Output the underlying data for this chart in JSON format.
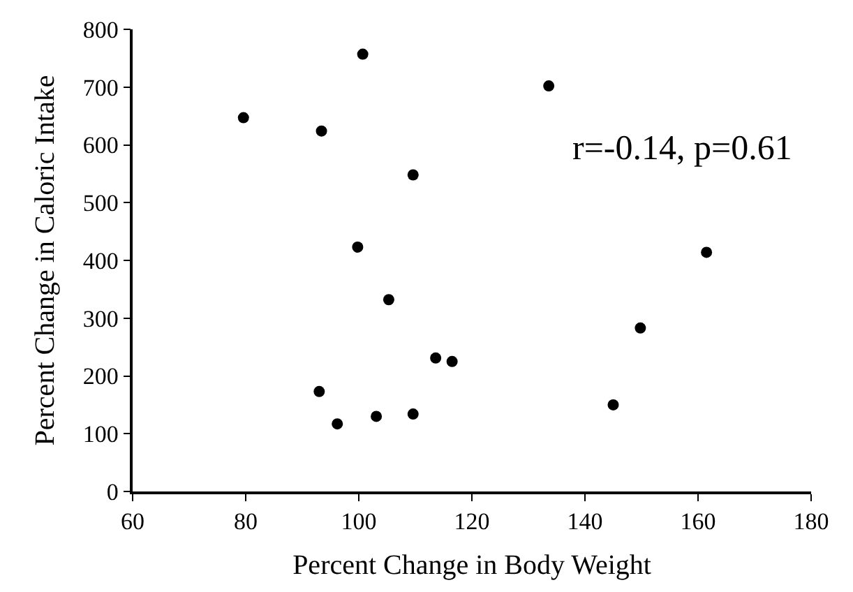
{
  "chart_data": {
    "type": "scatter",
    "xlabel": "Percent Change in Body Weight",
    "ylabel": "Percent Change in Caloric Intake",
    "x": [
      79.6,
      93.4,
      100.7,
      109.6,
      99.8,
      105.3,
      113.6,
      93,
      96.2,
      103.1,
      109.6,
      116.5,
      133.6,
      161.5,
      149.8,
      145
    ],
    "series": [
      {
        "color": "#000000",
        "values": [
          647,
          624,
          757,
          548,
          423,
          332,
          231,
          173,
          117,
          130,
          134,
          225,
          702,
          414,
          283,
          150
        ]
      }
    ],
    "xlim": [
      60,
      180
    ],
    "xticks": [
      60,
      80,
      100,
      120,
      140,
      160,
      180
    ],
    "ylim": [
      0,
      800
    ],
    "yticks": [
      0,
      100,
      200,
      300,
      400,
      500,
      600,
      700,
      800
    ],
    "marker": "circle",
    "annotations": [
      "r=-0.14, p=0.61"
    ]
  }
}
